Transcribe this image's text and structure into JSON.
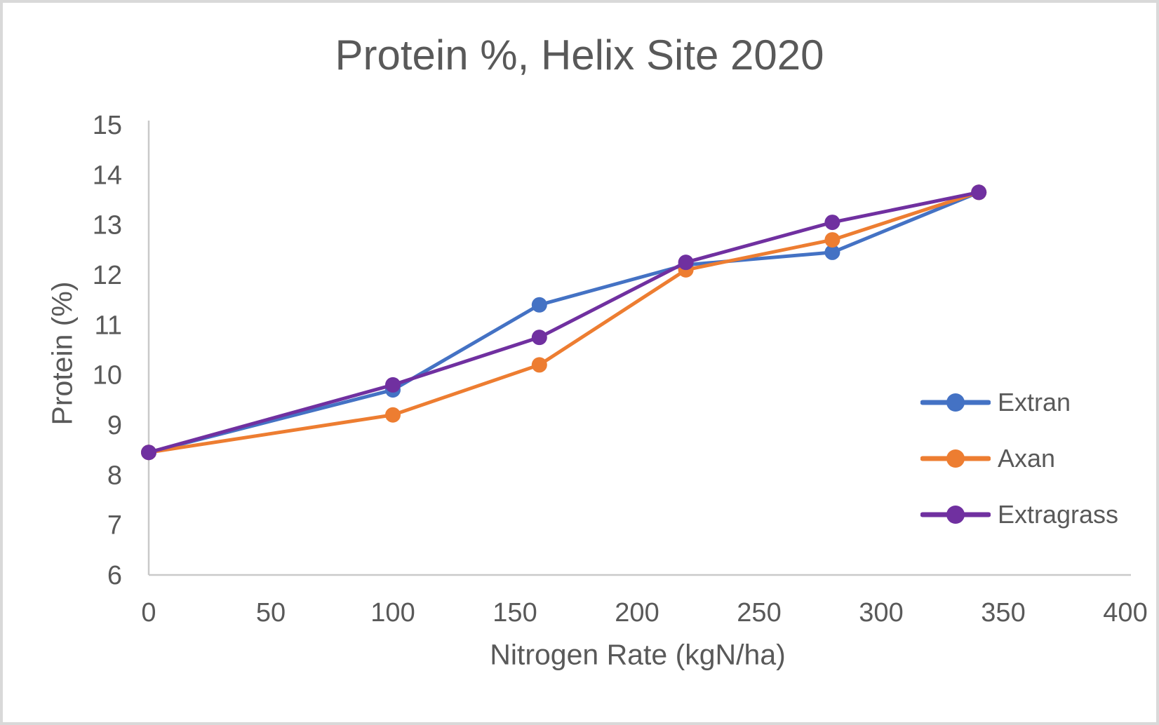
{
  "chart_data": {
    "type": "line",
    "title": "Protein %, Helix Site 2020",
    "xlabel": "Nitrogen Rate (kgN/ha)",
    "ylabel": "Protein (%)",
    "x": [
      0,
      100,
      160,
      220,
      280,
      340
    ],
    "series": [
      {
        "name": "Extran",
        "color": "#4472C4",
        "values": [
          8.45,
          9.7,
          11.4,
          12.2,
          12.45,
          13.65
        ]
      },
      {
        "name": "Axan",
        "color": "#ED7D31",
        "values": [
          8.45,
          9.2,
          10.2,
          12.1,
          12.7,
          13.65
        ]
      },
      {
        "name": "Extragrass",
        "color": "#7030A0",
        "values": [
          8.45,
          9.8,
          10.75,
          12.25,
          13.05,
          13.65
        ]
      }
    ],
    "xlim": [
      0,
      400
    ],
    "ylim": [
      6,
      15
    ],
    "x_ticks": [
      0,
      50,
      100,
      150,
      200,
      250,
      300,
      350,
      400
    ],
    "y_ticks": [
      6,
      7,
      8,
      9,
      10,
      11,
      12,
      13,
      14,
      15
    ],
    "grid": false,
    "legend_position": "right-inside",
    "marker": "circle",
    "text_color": "#595959",
    "axis_line_color": "#C9C9C9",
    "background_color": "#FFFFFF",
    "border_color": "#D9D9D9"
  }
}
